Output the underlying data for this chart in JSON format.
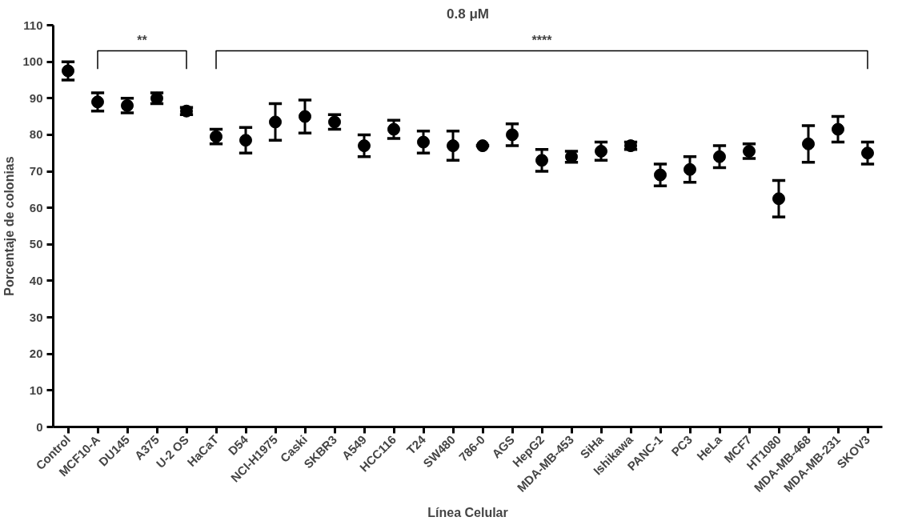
{
  "chart_data": {
    "type": "scatter",
    "title": "0.8 μM",
    "xlabel": "Línea Celular",
    "ylabel": "Porcentaje de colonias",
    "categories": [
      "Control",
      "MCF10-A",
      "DU145",
      "A375",
      "U-2 OS",
      "HaCaT",
      "D54",
      "NCI-H1975",
      "Caski",
      "SKBR3",
      "A549",
      "HCC116",
      "T24",
      "SW480",
      "786-0",
      "AGS",
      "HepG2",
      "MDA-MB-453",
      "SiHa",
      "Ishikawa",
      "PANC-1",
      "PC3",
      "HeLa",
      "MCF7",
      "HT1080",
      "MDA-MB-468",
      "MDA-MB-231",
      "SKOV3"
    ],
    "series": [
      {
        "color": "#000000",
        "values": [
          97.5,
          89,
          88,
          90,
          86.5,
          79.5,
          78.5,
          83.5,
          85,
          83.5,
          77,
          81.5,
          78,
          77,
          77,
          80,
          73,
          74,
          75.5,
          77,
          69,
          70.5,
          74,
          75.5,
          62.5,
          77.5,
          81.5,
          75
        ],
        "errors": [
          2.5,
          2.5,
          2,
          1.5,
          1,
          2,
          3.5,
          5,
          4.5,
          2,
          3,
          2.5,
          3,
          4,
          0,
          3,
          3,
          1.5,
          2.5,
          1,
          3,
          3.5,
          3,
          2,
          5,
          5,
          3.5,
          3
        ]
      }
    ],
    "ylim": [
      0,
      110
    ],
    "yticks": [
      0,
      10,
      20,
      30,
      40,
      50,
      60,
      70,
      80,
      90,
      100,
      110
    ],
    "marker": "circle",
    "grid": false,
    "annotations": [
      "**",
      "****"
    ]
  }
}
